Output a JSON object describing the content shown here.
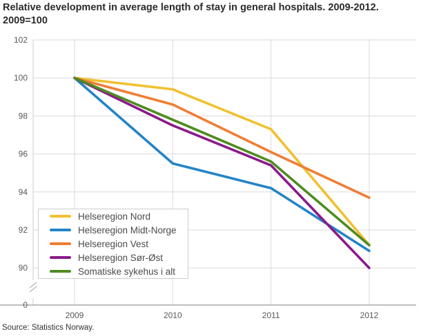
{
  "title": {
    "line1": "Relative development in average length of stay in general hospitals. 2009-2012.",
    "line2": "2009=100"
  },
  "source": "Source: Statistics Norway.",
  "chart_data": {
    "type": "line",
    "x": [
      "2009",
      "2010",
      "2011",
      "2012"
    ],
    "xlabel": "",
    "ylabel": "",
    "yticks": [
      102,
      100,
      98,
      96,
      94,
      92,
      90
    ],
    "y_axis_break_to_zero": true,
    "zero_tick_label": "0",
    "ylim": [
      90,
      102
    ],
    "grid": true,
    "legend_position": "inside-bottom-left",
    "series": [
      {
        "name": "Helseregion Nord",
        "color": "#F0C12F",
        "values": [
          100,
          99.4,
          97.3,
          91.2
        ]
      },
      {
        "name": "Helseregion Midt-Norge",
        "color": "#2484C6",
        "values": [
          100,
          95.5,
          94.2,
          90.9
        ]
      },
      {
        "name": "Helseregion Vest",
        "color": "#F07D33",
        "values": [
          100,
          98.6,
          96.1,
          93.7
        ]
      },
      {
        "name": "Helseregion Sør-Øst",
        "color": "#8A1A8A",
        "values": [
          100,
          97.5,
          95.4,
          90.0
        ]
      },
      {
        "name": "Somatiske sykehus i alt",
        "color": "#4F8B20",
        "values": [
          100,
          97.8,
          95.6,
          91.2
        ]
      }
    ]
  },
  "colors": {
    "grid": "#d9d9d9",
    "plot_border": "#cccccc",
    "axis_line": "#999999",
    "tick_label": "#595959",
    "break_mark": "#b5b5b5"
  }
}
